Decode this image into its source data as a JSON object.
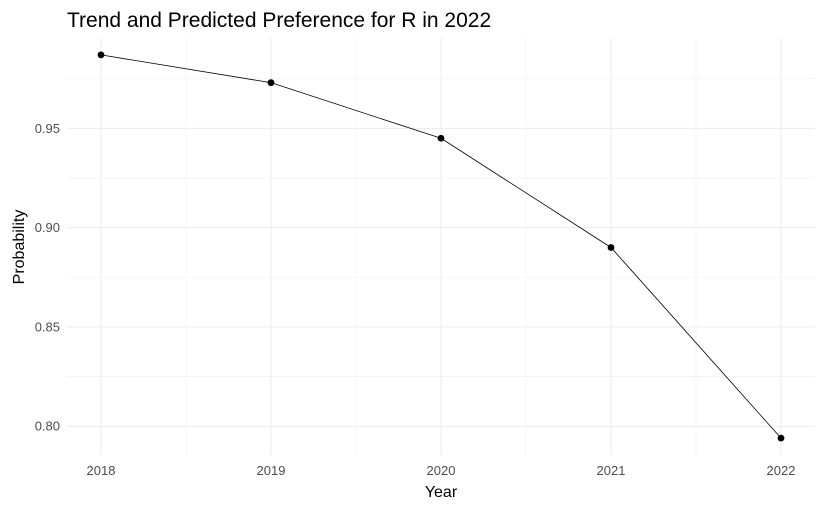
{
  "chart_data": {
    "type": "line",
    "title": "Trend and Predicted Preference for R in 2022",
    "xlabel": "Year",
    "ylabel": "Probability",
    "x": [
      2018,
      2019,
      2020,
      2021,
      2022
    ],
    "y": [
      0.987,
      0.973,
      0.945,
      0.89,
      0.794
    ],
    "x_ticks": [
      "2018",
      "2019",
      "2020",
      "2021",
      "2022"
    ],
    "y_ticks": [
      "0.80",
      "0.85",
      "0.90",
      "0.95"
    ],
    "xlim": [
      2017.8,
      2022.2
    ],
    "ylim": [
      0.7855,
      0.9955
    ],
    "grid": true,
    "legend": "none",
    "line_color": "#000000",
    "point_color": "#000000",
    "grid_color": "#ebebeb",
    "background": "#ffffff"
  }
}
